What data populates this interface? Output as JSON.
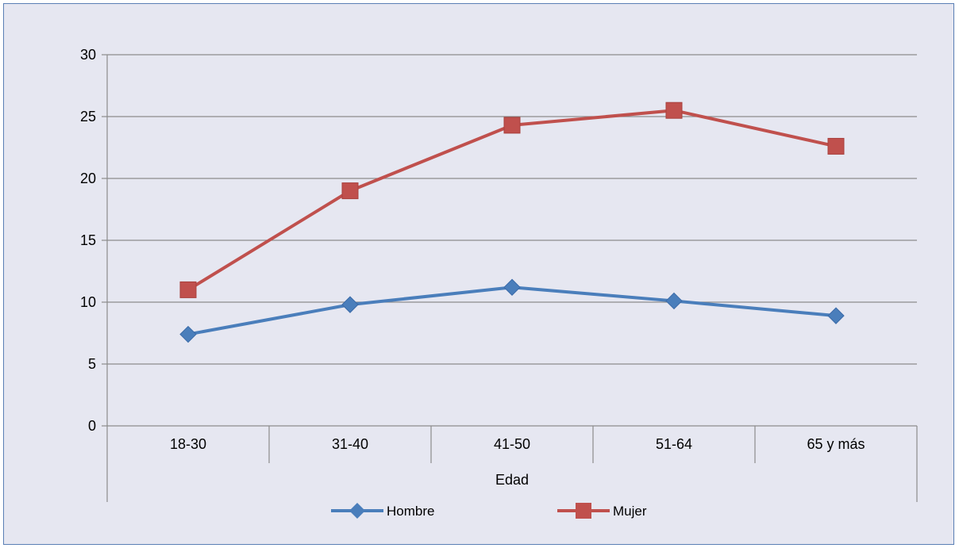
{
  "chart_data": {
    "type": "line",
    "categories": [
      "18-30",
      "31-40",
      "41-50",
      "51-64",
      "65 y más"
    ],
    "xlabel": "Edad",
    "ylabel": "",
    "ylim": [
      0,
      30
    ],
    "yticks": [
      0,
      5,
      10,
      15,
      20,
      25,
      30
    ],
    "grid": "horizontal",
    "legend_position": "bottom",
    "series": [
      {
        "name": "Hombre",
        "values": [
          7.4,
          9.8,
          11.2,
          10.1,
          8.9
        ],
        "color": "#4a7ebb",
        "marker": "diamond"
      },
      {
        "name": "Mujer",
        "values": [
          11.0,
          19.0,
          24.3,
          25.5,
          22.6
        ],
        "color": "#c0504d",
        "marker": "square"
      }
    ]
  }
}
